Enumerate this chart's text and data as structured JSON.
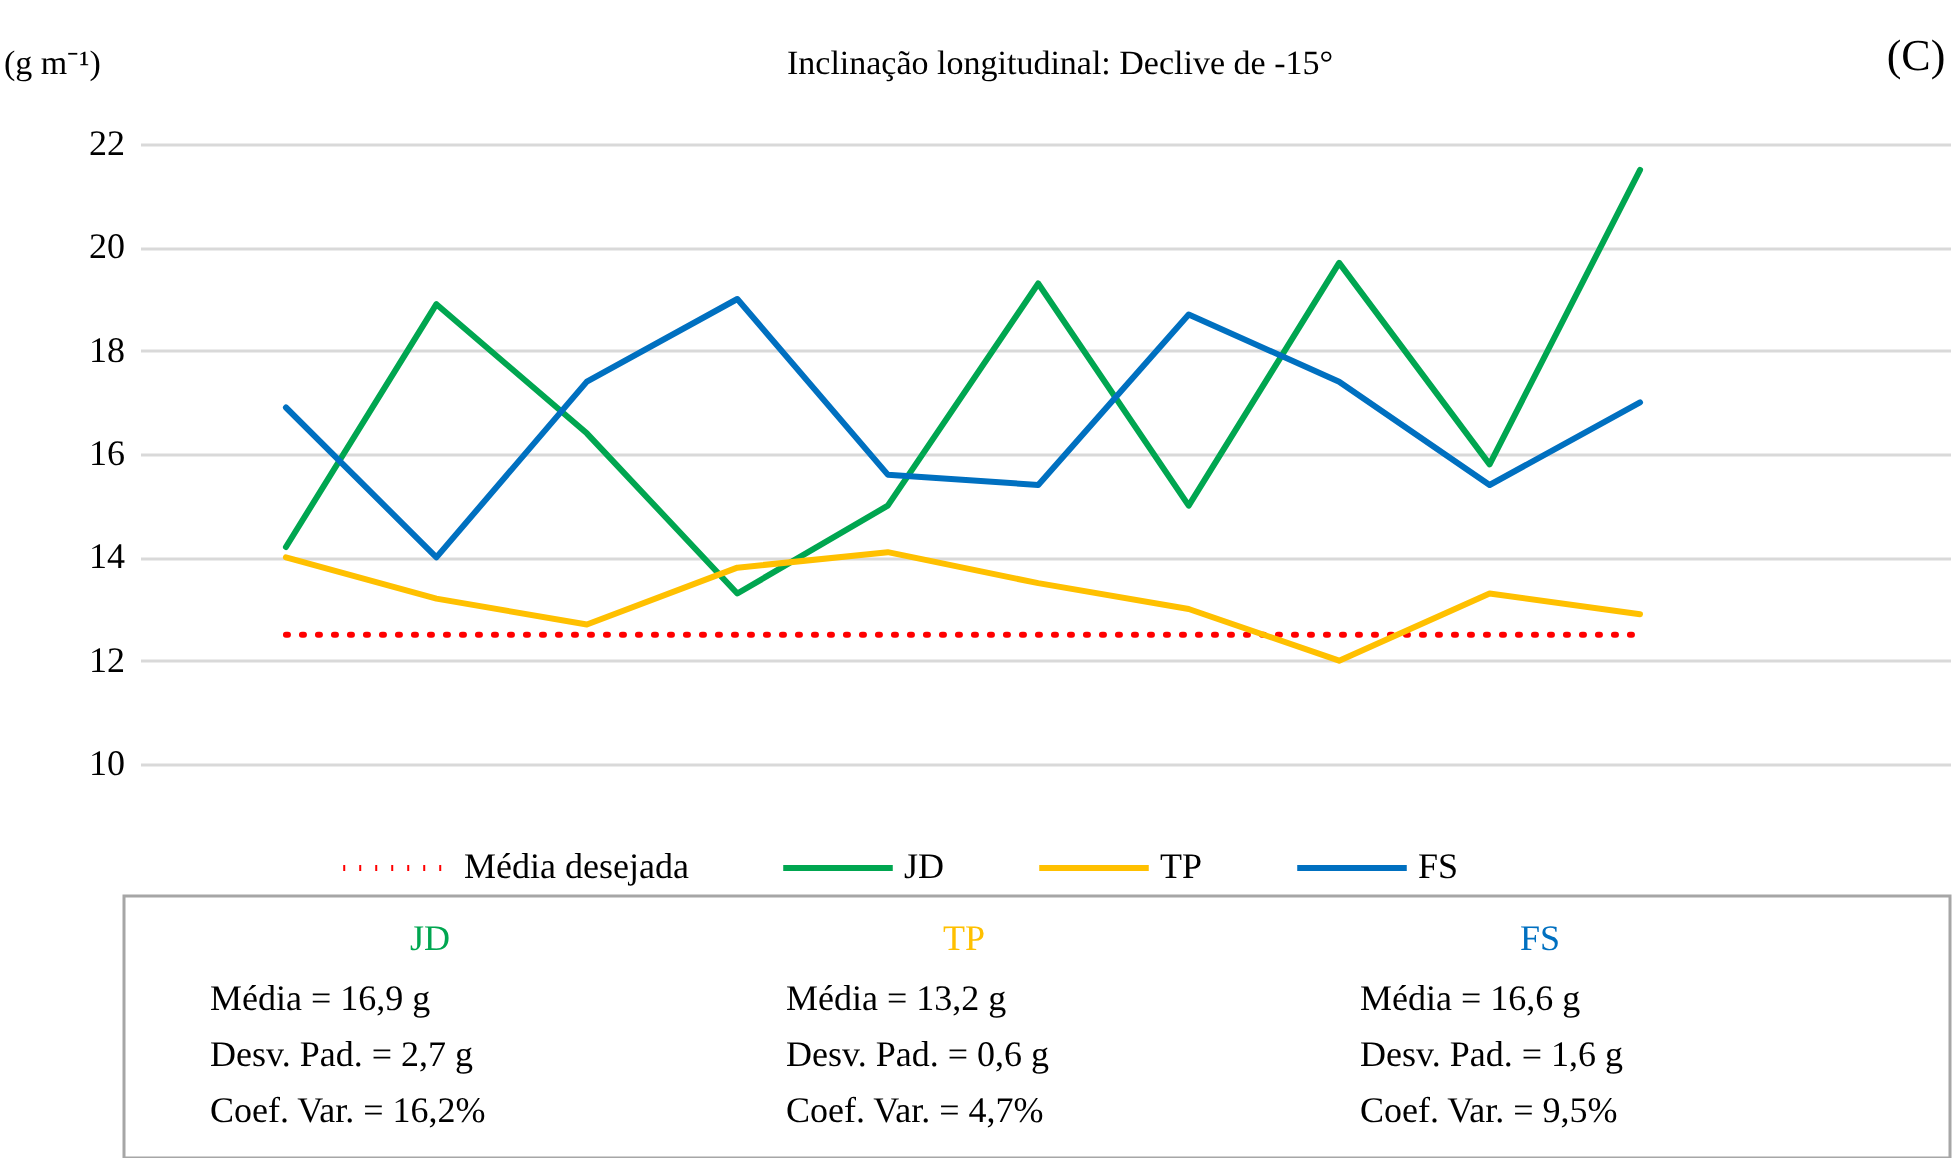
{
  "chart_data": {
    "type": "line",
    "title": "Inclinação longitudinal: Declive de -15°",
    "ylabel": "(g m⁻¹)",
    "categories": [
      null,
      null,
      null,
      null,
      null,
      null,
      null,
      null,
      null,
      null
    ],
    "ylim": [
      10,
      22
    ],
    "yticks": [
      10,
      12,
      14,
      16,
      18,
      20,
      22
    ],
    "grid": "y",
    "legend": "bottom",
    "marker": "none",
    "series": [
      {
        "name": "Média desejada",
        "color": "#ff0000",
        "line_style": "dotted",
        "values": [
          12.5,
          12.5,
          12.5,
          12.5,
          12.5,
          12.5,
          12.5,
          12.5,
          12.5,
          12.5
        ]
      },
      {
        "name": "JD",
        "color": "#00a650",
        "line_style": "solid",
        "values": [
          14.2,
          18.9,
          16.4,
          13.3,
          15.0,
          19.3,
          15.0,
          19.7,
          15.8,
          21.5
        ]
      },
      {
        "name": "TP",
        "color": "#ffc000",
        "line_style": "solid",
        "values": [
          14.0,
          13.2,
          12.7,
          13.8,
          14.1,
          13.5,
          13.0,
          12.0,
          13.3,
          12.9
        ]
      },
      {
        "name": "FS",
        "color": "#0070c0",
        "line_style": "solid",
        "values": [
          16.9,
          14.0,
          17.4,
          19.0,
          15.6,
          15.4,
          18.7,
          17.4,
          15.4,
          17.0
        ]
      }
    ],
    "annotations": [
      "(C)",
      "JD",
      "Média = 16,9 g",
      "Desv. Pad. = 2,7 g",
      "Coef. Var. = 16,2%",
      "TP",
      "Média = 13,2 g",
      "Desv. Pad. = 0,6 g",
      "Coef. Var. = 4,7%",
      "FS",
      "Média = 16,6 g",
      "Desv. Pad. = 1,6 g",
      "Coef. Var. = 9,5%"
    ]
  }
}
